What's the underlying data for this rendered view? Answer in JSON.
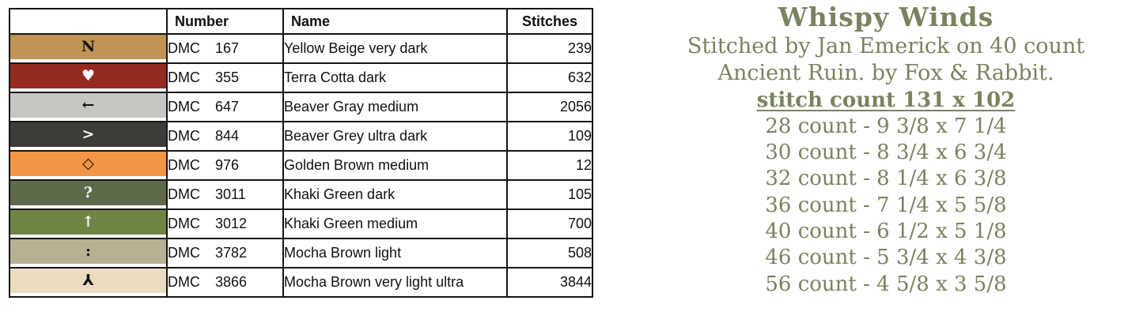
{
  "table": {
    "headers": {
      "symbol": "",
      "number": "Number",
      "name": "Name",
      "stitches": "Stitches"
    },
    "rows": [
      {
        "symbol": "N",
        "symbol_color": "#161210",
        "swatch": "#bf9455",
        "brand": "DMC",
        "number": "167",
        "name": "Yellow Beige very dark",
        "stitches": "239"
      },
      {
        "symbol": "♥",
        "symbol_color": "#ffffff",
        "swatch": "#952a21",
        "brand": "DMC",
        "number": "355",
        "name": "Terra Cotta dark",
        "stitches": "632"
      },
      {
        "symbol": "←",
        "symbol_color": "#161210",
        "swatch": "#c5c7c0",
        "brand": "DMC",
        "number": "647",
        "name": "Beaver Gray medium",
        "stitches": "2056"
      },
      {
        "symbol": ">",
        "symbol_color": "#ffffff",
        "swatch": "#3d3c36",
        "brand": "DMC",
        "number": "844",
        "name": "Beaver Grey ultra dark",
        "stitches": "109"
      },
      {
        "symbol": "◇",
        "symbol_color": "#161210",
        "swatch": "#f29544",
        "brand": "DMC",
        "number": "976",
        "name": "Golden Brown medium",
        "stitches": "12"
      },
      {
        "symbol": "?",
        "symbol_color": "#ffffff",
        "swatch": "#5d6b4a",
        "brand": "DMC",
        "number": "3011",
        "name": "Khaki Green dark",
        "stitches": "105"
      },
      {
        "symbol": "↑",
        "symbol_color": "#ffffff",
        "swatch": "#6e8546",
        "brand": "DMC",
        "number": "3012",
        "name": "Khaki Green medium",
        "stitches": "700"
      },
      {
        "symbol": ":",
        "symbol_color": "#161210",
        "swatch": "#b8b093",
        "brand": "DMC",
        "number": "3782",
        "name": "Mocha Brown light",
        "stitches": "508"
      },
      {
        "symbol": "⅄",
        "symbol_color": "#161210",
        "swatch": "#ebdcc0",
        "brand": "DMC",
        "number": "3866",
        "name": "Mocha Brown very light ultra",
        "stitches": "3844"
      }
    ]
  },
  "info": {
    "accent_color": "#79835f",
    "title": "Whispy Winds",
    "subtitle_line1": "Stitched by Jan Emerick on 40 count",
    "subtitle_line2": "Ancient Ruin. by Fox & Rabbit.",
    "stitch_count": "stitch count 131 x 102",
    "size_lines": [
      "28 count - 9 3/8 x 7 1/4",
      "30 count - 8 3/4 x 6 3/4",
      "32 count - 8 1/4 x 6 3/8",
      "36 count - 7 1/4 x 5 5/8",
      "40 count - 6 1/2 x 5 1/8",
      "46 count - 5 3/4 x 4 3/8",
      "56 count - 4 5/8 x 3 5/8"
    ]
  }
}
